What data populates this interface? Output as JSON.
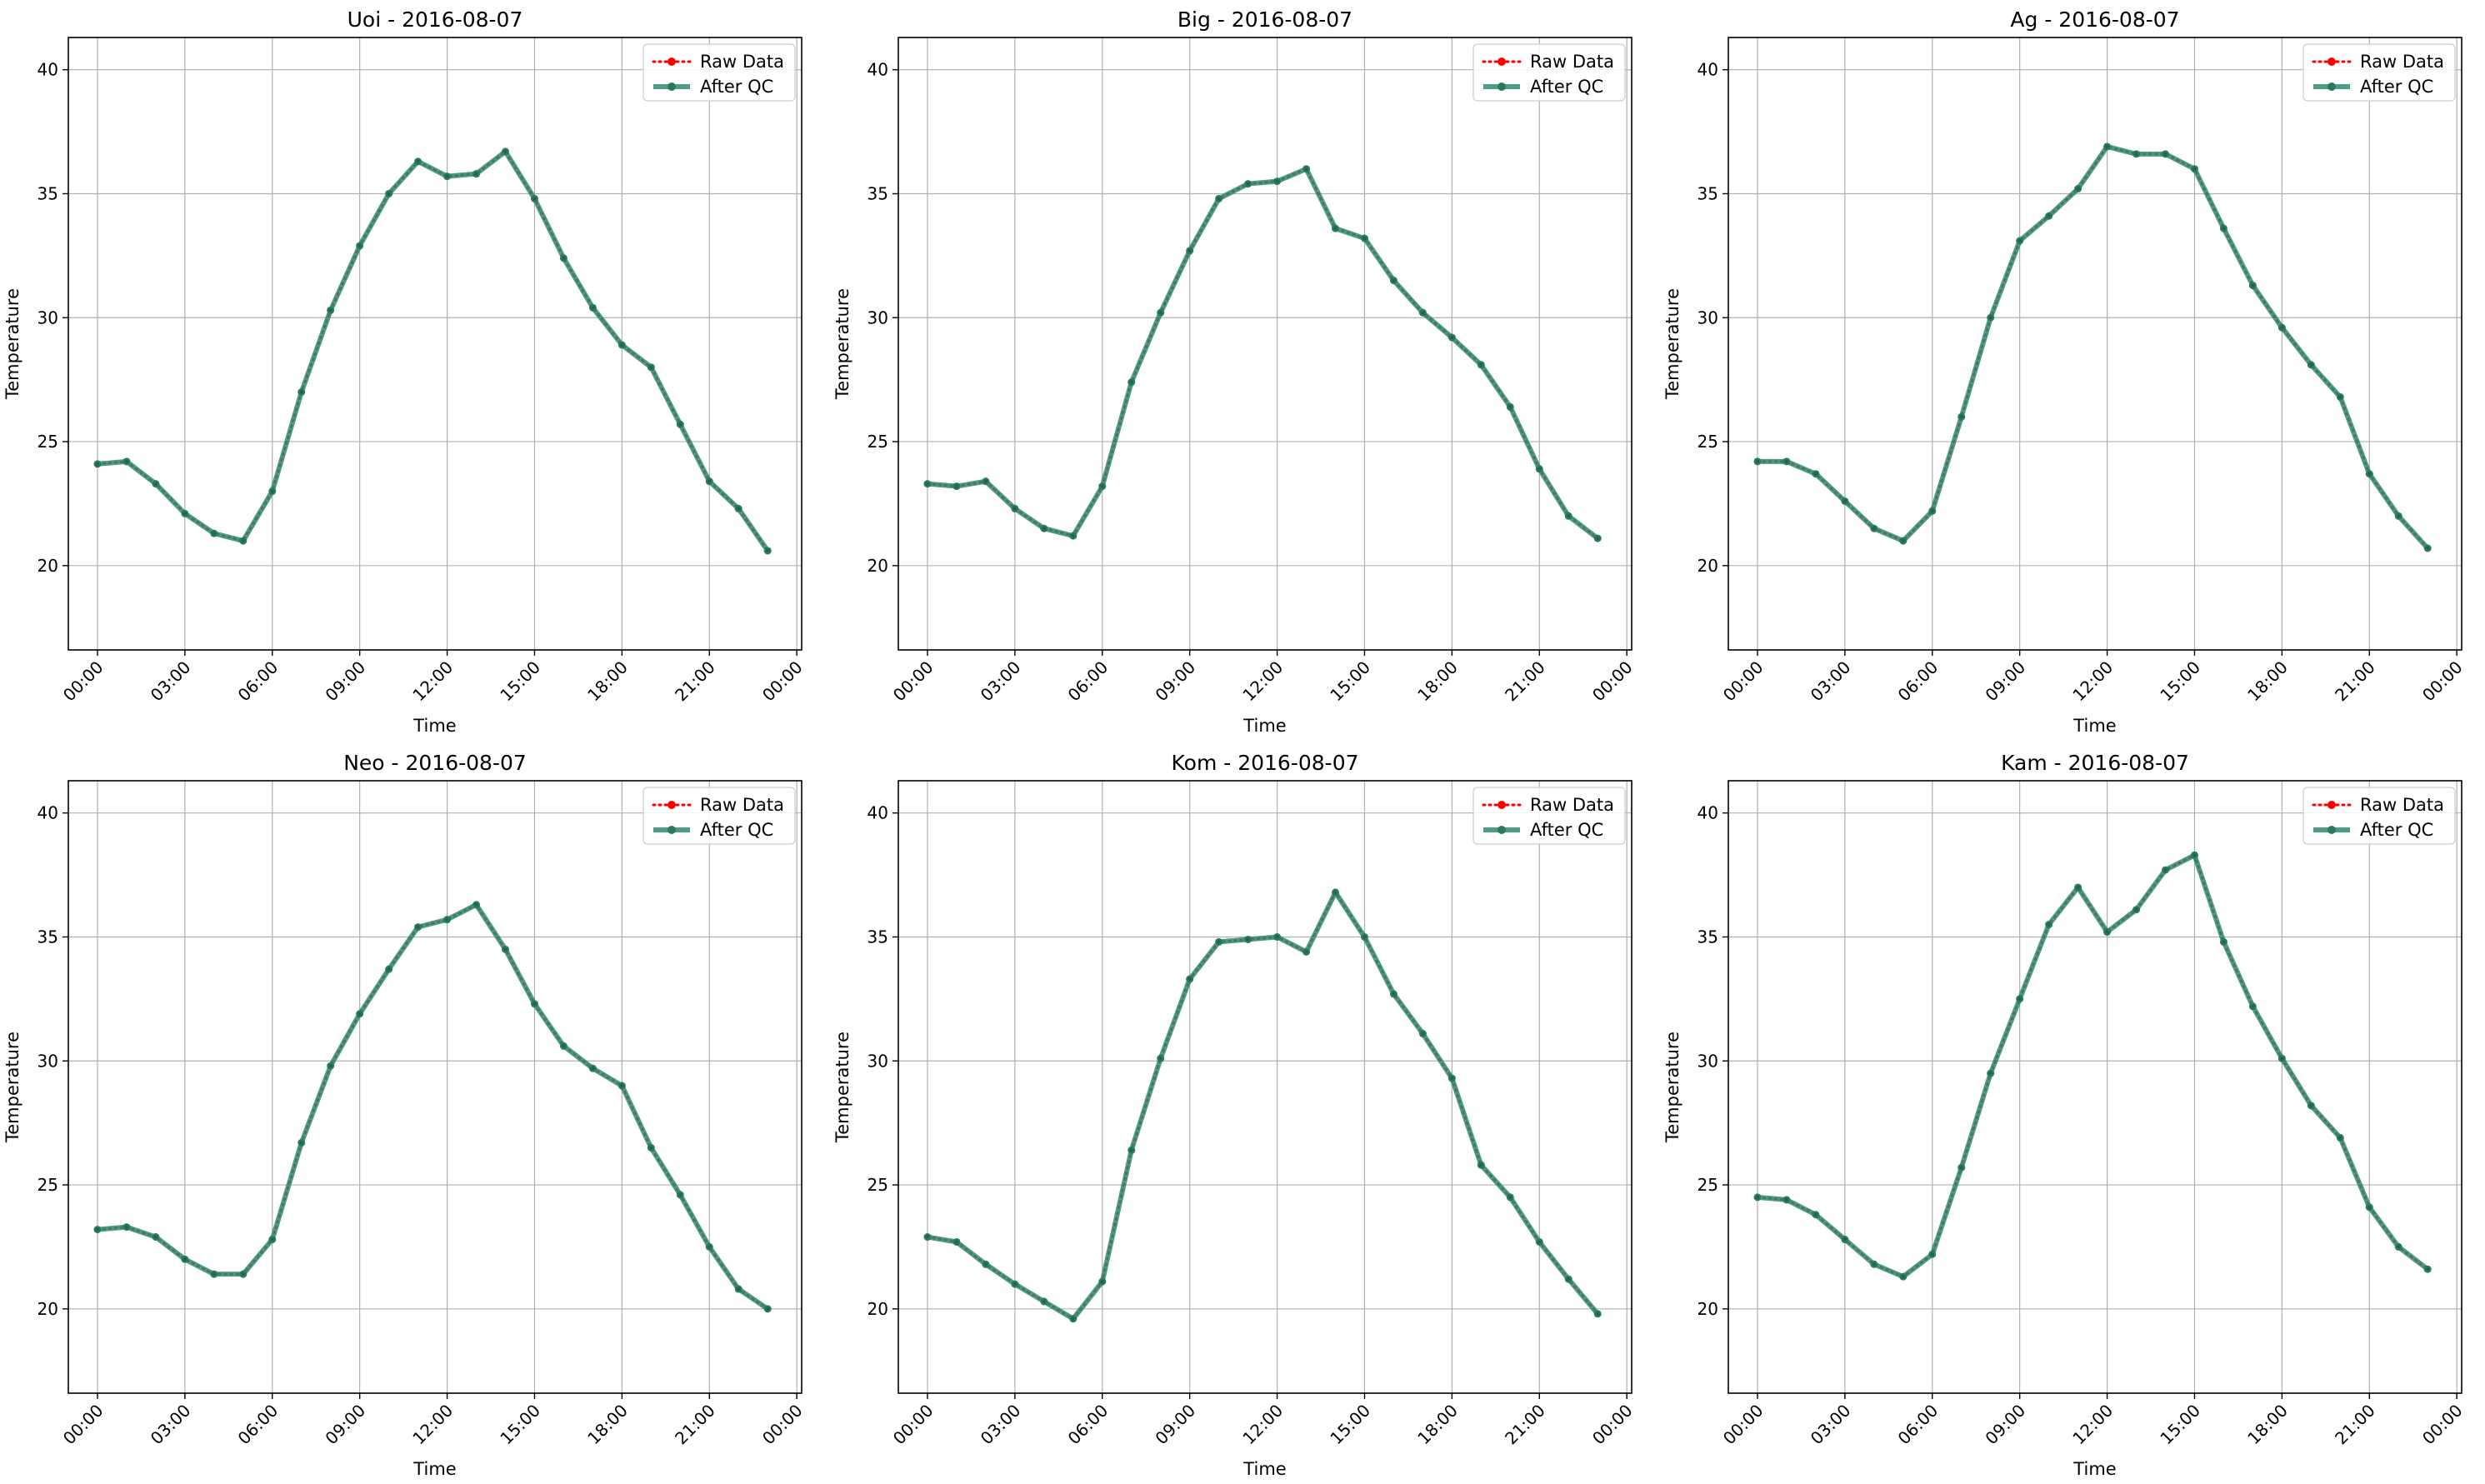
{
  "chart_data": [
    {
      "type": "line",
      "title": "Uoi - 2016-08-07",
      "xlabel": "Time",
      "ylabel": "Temperature",
      "ylim": [
        16.6,
        41.3
      ],
      "xlim": [
        "2016-08-06T23:00",
        "2016-08-08T00:10"
      ],
      "yticks": [
        20,
        25,
        30,
        35,
        40
      ],
      "xticks": [
        "00:00",
        "03:00",
        "06:00",
        "09:00",
        "12:00",
        "15:00",
        "18:00",
        "21:00",
        "00:00"
      ],
      "grid": true,
      "legend_position": "top-right",
      "legend": [
        "Raw Data",
        "After QC"
      ],
      "x": [
        "00:00",
        "01:00",
        "02:00",
        "03:00",
        "04:00",
        "05:00",
        "06:00",
        "07:00",
        "08:00",
        "09:00",
        "10:00",
        "11:00",
        "12:00",
        "13:00",
        "14:00",
        "15:00",
        "16:00",
        "17:00",
        "18:00",
        "19:00",
        "20:00",
        "21:00",
        "22:00",
        "23:00"
      ],
      "series": [
        {
          "name": "Raw Data",
          "values": [
            24.1,
            24.2,
            23.3,
            22.1,
            21.3,
            21.0,
            23.0,
            27.0,
            30.3,
            32.9,
            35.0,
            36.3,
            35.7,
            35.8,
            36.7,
            34.8,
            32.4,
            30.4,
            28.9,
            28.0,
            25.7,
            23.4,
            22.3,
            20.6
          ]
        },
        {
          "name": "After QC",
          "values": [
            24.1,
            24.2,
            23.3,
            22.1,
            21.3,
            21.0,
            23.0,
            27.0,
            30.3,
            32.9,
            35.0,
            36.3,
            35.7,
            35.8,
            36.7,
            34.8,
            32.4,
            30.4,
            28.9,
            28.0,
            25.7,
            23.4,
            22.3,
            20.6
          ]
        }
      ]
    },
    {
      "type": "line",
      "title": "Big - 2016-08-07",
      "xlabel": "Time",
      "ylabel": "Temperature",
      "ylim": [
        16.6,
        41.3
      ],
      "xlim": [
        "2016-08-06T23:00",
        "2016-08-08T00:10"
      ],
      "yticks": [
        20,
        25,
        30,
        35,
        40
      ],
      "xticks": [
        "00:00",
        "03:00",
        "06:00",
        "09:00",
        "12:00",
        "15:00",
        "18:00",
        "21:00",
        "00:00"
      ],
      "grid": true,
      "legend_position": "top-right",
      "legend": [
        "Raw Data",
        "After QC"
      ],
      "x": [
        "00:00",
        "01:00",
        "02:00",
        "03:00",
        "04:00",
        "05:00",
        "06:00",
        "07:00",
        "08:00",
        "09:00",
        "10:00",
        "11:00",
        "12:00",
        "13:00",
        "14:00",
        "15:00",
        "16:00",
        "17:00",
        "18:00",
        "19:00",
        "20:00",
        "21:00",
        "22:00",
        "23:00"
      ],
      "series": [
        {
          "name": "Raw Data",
          "values": [
            23.3,
            23.2,
            23.4,
            22.3,
            21.5,
            21.2,
            23.2,
            27.4,
            30.2,
            32.7,
            34.8,
            35.4,
            35.5,
            36.0,
            33.6,
            33.2,
            31.5,
            30.2,
            29.2,
            28.1,
            26.4,
            23.9,
            22.0,
            21.1
          ]
        },
        {
          "name": "After QC",
          "values": [
            23.3,
            23.2,
            23.4,
            22.3,
            21.5,
            21.2,
            23.2,
            27.4,
            30.2,
            32.7,
            34.8,
            35.4,
            35.5,
            36.0,
            33.6,
            33.2,
            31.5,
            30.2,
            29.2,
            28.1,
            26.4,
            23.9,
            22.0,
            21.1
          ]
        }
      ]
    },
    {
      "type": "line",
      "title": "Ag - 2016-08-07",
      "xlabel": "Time",
      "ylabel": "Temperature",
      "ylim": [
        16.6,
        41.3
      ],
      "xlim": [
        "2016-08-06T23:00",
        "2016-08-08T00:10"
      ],
      "yticks": [
        20,
        25,
        30,
        35,
        40
      ],
      "xticks": [
        "00:00",
        "03:00",
        "06:00",
        "09:00",
        "12:00",
        "15:00",
        "18:00",
        "21:00",
        "00:00"
      ],
      "grid": true,
      "legend_position": "top-right",
      "legend": [
        "Raw Data",
        "After QC"
      ],
      "x": [
        "00:00",
        "01:00",
        "02:00",
        "03:00",
        "04:00",
        "05:00",
        "06:00",
        "07:00",
        "08:00",
        "09:00",
        "10:00",
        "11:00",
        "12:00",
        "13:00",
        "14:00",
        "15:00",
        "16:00",
        "17:00",
        "18:00",
        "19:00",
        "20:00",
        "21:00",
        "22:00",
        "23:00"
      ],
      "series": [
        {
          "name": "Raw Data",
          "values": [
            24.2,
            24.2,
            23.7,
            22.6,
            21.5,
            21.0,
            22.2,
            26.0,
            30.0,
            33.1,
            34.1,
            35.2,
            36.9,
            36.6,
            36.6,
            36.0,
            33.6,
            31.3,
            29.6,
            28.1,
            26.8,
            23.7,
            22.0,
            20.7
          ]
        },
        {
          "name": "After QC",
          "values": [
            24.2,
            24.2,
            23.7,
            22.6,
            21.5,
            21.0,
            22.2,
            26.0,
            30.0,
            33.1,
            34.1,
            35.2,
            36.9,
            36.6,
            36.6,
            36.0,
            33.6,
            31.3,
            29.6,
            28.1,
            26.8,
            23.7,
            22.0,
            20.7
          ]
        }
      ]
    },
    {
      "type": "line",
      "title": "Neo - 2016-08-07",
      "xlabel": "Time",
      "ylabel": "Temperature",
      "ylim": [
        16.6,
        41.3
      ],
      "xlim": [
        "2016-08-06T23:00",
        "2016-08-08T00:10"
      ],
      "yticks": [
        20,
        25,
        30,
        35,
        40
      ],
      "xticks": [
        "00:00",
        "03:00",
        "06:00",
        "09:00",
        "12:00",
        "15:00",
        "18:00",
        "21:00",
        "00:00"
      ],
      "grid": true,
      "legend_position": "top-right",
      "legend": [
        "Raw Data",
        "After QC"
      ],
      "x": [
        "00:00",
        "01:00",
        "02:00",
        "03:00",
        "04:00",
        "05:00",
        "06:00",
        "07:00",
        "08:00",
        "09:00",
        "10:00",
        "11:00",
        "12:00",
        "13:00",
        "14:00",
        "15:00",
        "16:00",
        "17:00",
        "18:00",
        "19:00",
        "20:00",
        "21:00",
        "22:00",
        "23:00"
      ],
      "series": [
        {
          "name": "Raw Data",
          "values": [
            23.2,
            23.3,
            22.9,
            22.0,
            21.4,
            21.4,
            22.8,
            26.7,
            29.8,
            31.9,
            33.7,
            35.4,
            35.7,
            36.3,
            34.5,
            32.3,
            30.6,
            29.7,
            29.0,
            26.5,
            24.6,
            22.5,
            20.8,
            20.0
          ]
        },
        {
          "name": "After QC",
          "values": [
            23.2,
            23.3,
            22.9,
            22.0,
            21.4,
            21.4,
            22.8,
            26.7,
            29.8,
            31.9,
            33.7,
            35.4,
            35.7,
            36.3,
            34.5,
            32.3,
            30.6,
            29.7,
            29.0,
            26.5,
            24.6,
            22.5,
            20.8,
            20.0
          ]
        }
      ]
    },
    {
      "type": "line",
      "title": "Kom - 2016-08-07",
      "xlabel": "Time",
      "ylabel": "Temperature",
      "ylim": [
        16.6,
        41.3
      ],
      "xlim": [
        "2016-08-06T23:00",
        "2016-08-08T00:10"
      ],
      "yticks": [
        20,
        25,
        30,
        35,
        40
      ],
      "xticks": [
        "00:00",
        "03:00",
        "06:00",
        "09:00",
        "12:00",
        "15:00",
        "18:00",
        "21:00",
        "00:00"
      ],
      "grid": true,
      "legend_position": "top-right",
      "legend": [
        "Raw Data",
        "After QC"
      ],
      "x": [
        "00:00",
        "01:00",
        "02:00",
        "03:00",
        "04:00",
        "05:00",
        "06:00",
        "07:00",
        "08:00",
        "09:00",
        "10:00",
        "11:00",
        "12:00",
        "13:00",
        "14:00",
        "15:00",
        "16:00",
        "17:00",
        "18:00",
        "19:00",
        "20:00",
        "21:00",
        "22:00",
        "23:00"
      ],
      "series": [
        {
          "name": "Raw Data",
          "values": [
            22.9,
            22.7,
            21.8,
            21.0,
            20.3,
            19.6,
            21.1,
            26.4,
            30.1,
            33.3,
            34.8,
            34.9,
            35.0,
            34.4,
            36.8,
            35.0,
            32.7,
            31.1,
            29.3,
            25.8,
            24.5,
            22.7,
            21.2,
            19.8
          ]
        },
        {
          "name": "After QC",
          "values": [
            22.9,
            22.7,
            21.8,
            21.0,
            20.3,
            19.6,
            21.1,
            26.4,
            30.1,
            33.3,
            34.8,
            34.9,
            35.0,
            34.4,
            36.8,
            35.0,
            32.7,
            31.1,
            29.3,
            25.8,
            24.5,
            22.7,
            21.2,
            19.8
          ]
        }
      ]
    },
    {
      "type": "line",
      "title": "Kam - 2016-08-07",
      "xlabel": "Time",
      "ylabel": "Temperature",
      "ylim": [
        16.6,
        41.3
      ],
      "xlim": [
        "2016-08-06T23:00",
        "2016-08-08T00:10"
      ],
      "yticks": [
        20,
        25,
        30,
        35,
        40
      ],
      "xticks": [
        "00:00",
        "03:00",
        "06:00",
        "09:00",
        "12:00",
        "15:00",
        "18:00",
        "21:00",
        "00:00"
      ],
      "grid": true,
      "legend_position": "top-right",
      "legend": [
        "Raw Data",
        "After QC"
      ],
      "x": [
        "00:00",
        "01:00",
        "02:00",
        "03:00",
        "04:00",
        "05:00",
        "06:00",
        "07:00",
        "08:00",
        "09:00",
        "10:00",
        "11:00",
        "12:00",
        "13:00",
        "14:00",
        "15:00",
        "16:00",
        "17:00",
        "18:00",
        "19:00",
        "20:00",
        "21:00",
        "22:00",
        "23:00"
      ],
      "series": [
        {
          "name": "Raw Data",
          "values": [
            24.5,
            24.4,
            23.8,
            22.8,
            21.8,
            21.3,
            22.2,
            25.7,
            29.5,
            32.5,
            35.5,
            37.0,
            35.2,
            36.1,
            37.7,
            38.3,
            34.8,
            32.2,
            30.1,
            28.2,
            26.9,
            24.1,
            22.5,
            21.6
          ]
        },
        {
          "name": "After QC",
          "values": [
            24.5,
            24.4,
            23.8,
            22.8,
            21.8,
            21.3,
            22.2,
            25.7,
            29.5,
            32.5,
            35.5,
            37.0,
            35.2,
            36.1,
            37.7,
            38.3,
            34.8,
            32.2,
            30.1,
            28.2,
            26.9,
            24.1,
            22.5,
            21.6
          ]
        }
      ]
    }
  ],
  "colors": {
    "raw": "#ff0000",
    "qc": "#2e8b70",
    "qc_marker": "#2a7a60",
    "grid": "#b0b0b0",
    "axes": "#000000"
  }
}
